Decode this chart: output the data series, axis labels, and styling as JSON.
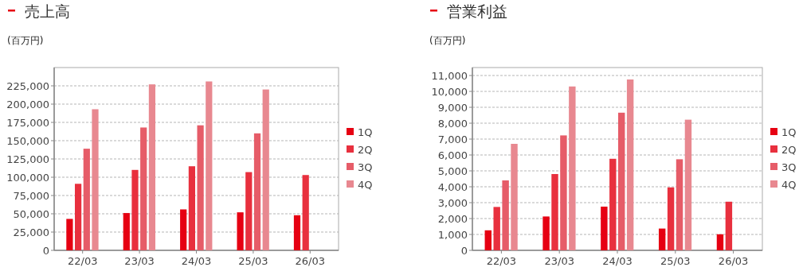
{
  "chart_data": [
    {
      "type": "bar",
      "title": "売上高",
      "ylabel": "(百万円)",
      "categories": [
        "22/03",
        "23/03",
        "24/03",
        "25/03",
        "26/03"
      ],
      "series": [
        {
          "name": "1Q",
          "color": "#e60012",
          "values": [
            43000,
            51000,
            56000,
            52000,
            48000
          ]
        },
        {
          "name": "2Q",
          "color": "#e8303e",
          "values": [
            91000,
            110000,
            115000,
            107000,
            103000
          ]
        },
        {
          "name": "3Q",
          "color": "#e65c68",
          "values": [
            139000,
            168000,
            171000,
            160000,
            null
          ]
        },
        {
          "name": "4Q",
          "color": "#e88890",
          "values": [
            193000,
            227000,
            231000,
            220000,
            null
          ]
        }
      ],
      "ylim": [
        0,
        250000
      ],
      "yticks": [
        {
          "value": 0,
          "label": "0"
        },
        {
          "value": 25000,
          "label": "25,000"
        },
        {
          "value": 50000,
          "label": "50,000"
        },
        {
          "value": 75000,
          "label": "75,000"
        },
        {
          "value": 100000,
          "label": "100,000"
        },
        {
          "value": 125000,
          "label": "125,000"
        },
        {
          "value": 150000,
          "label": "150,000"
        },
        {
          "value": 175000,
          "label": "175,000"
        },
        {
          "value": 200000,
          "label": "200,000"
        },
        {
          "value": 225000,
          "label": "225,000"
        }
      ],
      "grid": "y",
      "legend": "right"
    },
    {
      "type": "bar",
      "title": "営業利益",
      "ylabel": "(百万円)",
      "categories": [
        "22/03",
        "23/03",
        "24/03",
        "25/03",
        "26/03"
      ],
      "series": [
        {
          "name": "1Q",
          "color": "#e60012",
          "values": [
            1260,
            2130,
            2750,
            1370,
            1010
          ]
        },
        {
          "name": "2Q",
          "color": "#e8303e",
          "values": [
            2730,
            4800,
            5760,
            3960,
            3060
          ]
        },
        {
          "name": "3Q",
          "color": "#e65c68",
          "values": [
            4400,
            7230,
            8660,
            5730,
            null
          ]
        },
        {
          "name": "4Q",
          "color": "#e88890",
          "values": [
            6700,
            10310,
            10750,
            8220,
            null
          ]
        }
      ],
      "ylim": [
        0,
        11500
      ],
      "yticks": [
        {
          "value": 0,
          "label": "0"
        },
        {
          "value": 1000,
          "label": "1,000"
        },
        {
          "value": 2000,
          "label": "2,000"
        },
        {
          "value": 3000,
          "label": "3,000"
        },
        {
          "value": 4000,
          "label": "4,000"
        },
        {
          "value": 5000,
          "label": "5,000"
        },
        {
          "value": 6000,
          "label": "6,000"
        },
        {
          "value": 7000,
          "label": "7,000"
        },
        {
          "value": 8000,
          "label": "8,000"
        },
        {
          "value": 9000,
          "label": "9,000"
        },
        {
          "value": 10000,
          "label": "10,000"
        },
        {
          "value": 11000,
          "label": "11,000"
        }
      ],
      "grid": "y",
      "legend": "right"
    }
  ]
}
